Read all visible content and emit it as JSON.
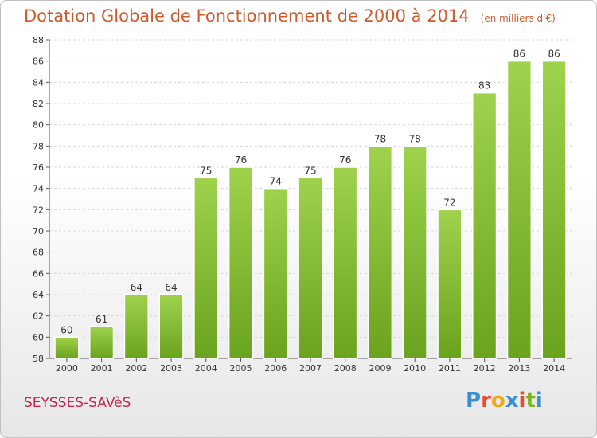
{
  "title": "Dotation Globale de Fonctionnement de 2000 à 2014",
  "subtitle": "(en milliers d'€)",
  "commune": "SEYSSES-SAVèS",
  "brand": {
    "text": "Proxiti",
    "colors": [
      "#3a8fd0",
      "#e84e2a",
      "#f0a818",
      "#3a8fd0",
      "#e84e2a",
      "#7ab51d",
      "#3a8fd0"
    ]
  },
  "colors": {
    "title": "#d05a2a",
    "commune": "#c8234b",
    "bar_top": "#9fd24d",
    "bar_bottom": "#6aa31e",
    "grid": "#d8d8d8",
    "axis_text": "#333333"
  },
  "chart_data": {
    "type": "bar",
    "title": "Dotation Globale de Fonctionnement de 2000 à 2014",
    "subtitle": "(en milliers d'€)",
    "categories": [
      "2000",
      "2001",
      "2002",
      "2003",
      "2004",
      "2005",
      "2006",
      "2007",
      "2008",
      "2009",
      "2010",
      "2011",
      "2012",
      "2013",
      "2014"
    ],
    "values": [
      60,
      61,
      64,
      64,
      75,
      76,
      74,
      75,
      76,
      78,
      78,
      72,
      83,
      86,
      86
    ],
    "ylim": [
      58,
      88
    ],
    "ytick_step": 2,
    "grid": true,
    "legend": "none"
  }
}
